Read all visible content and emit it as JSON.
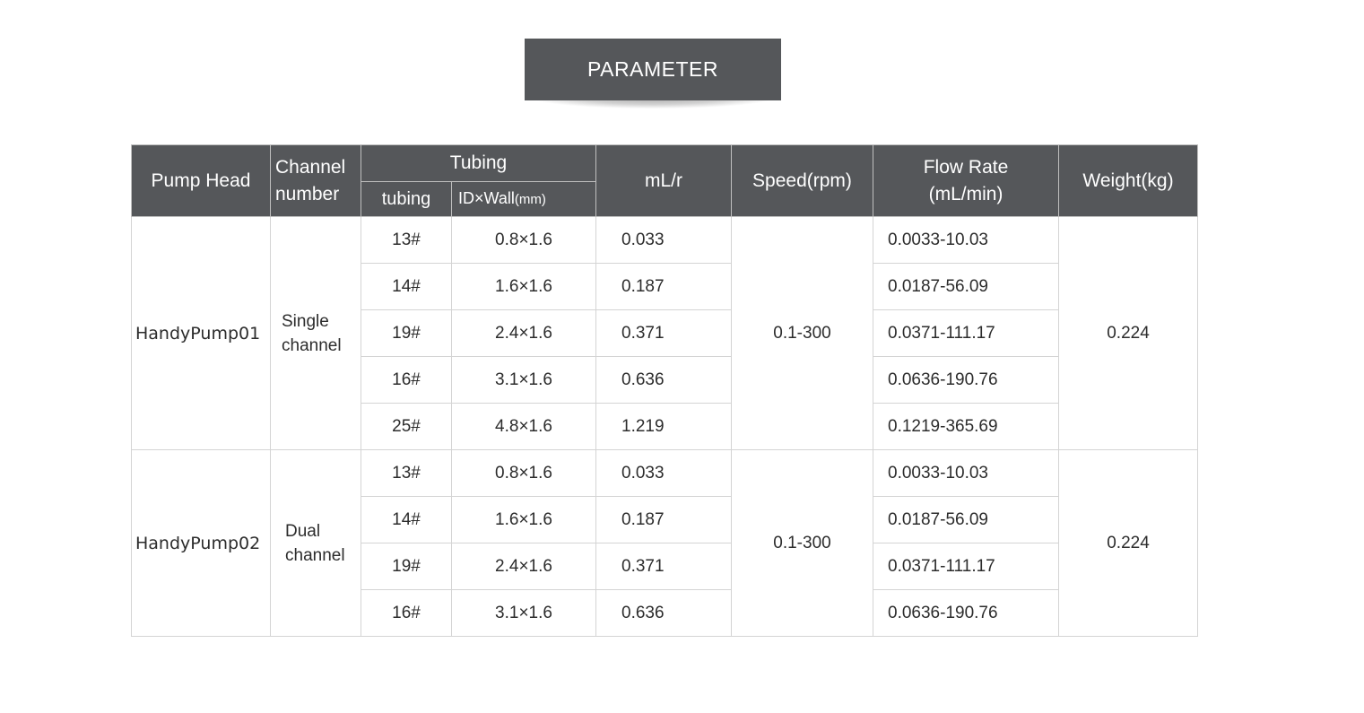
{
  "banner": {
    "title": "PARAMETER"
  },
  "headers": {
    "pump_head": "Pump Head",
    "channel_number_1": "Channel",
    "channel_number_2": "number",
    "tubing": "Tubing",
    "tubing_sub": "tubing",
    "id_wall": "ID×Wall",
    "id_wall_unit": "(mm)",
    "ml_r": "mL/r",
    "speed": "Speed(rpm)",
    "flow_rate_1": "Flow Rate",
    "flow_rate_2": "(mL/min)",
    "weight": "Weight(kg)"
  },
  "groups": [
    {
      "pump": "HandyPump01",
      "channel_1": "Single",
      "channel_2": "channel",
      "speed": "0.1-300",
      "weight": "0.224",
      "rows": [
        {
          "tubing": "13#",
          "id_wall": "0.8×1.6",
          "ml_r": "0.033",
          "flow": "0.0033-10.03"
        },
        {
          "tubing": "14#",
          "id_wall": "1.6×1.6",
          "ml_r": "0.187",
          "flow": "0.0187-56.09"
        },
        {
          "tubing": "19#",
          "id_wall": "2.4×1.6",
          "ml_r": "0.371",
          "flow": "0.0371-111.17"
        },
        {
          "tubing": "16#",
          "id_wall": "3.1×1.6",
          "ml_r": "0.636",
          "flow": "0.0636-190.76"
        },
        {
          "tubing": "25#",
          "id_wall": "4.8×1.6",
          "ml_r": "1.219",
          "flow": "0.1219-365.69"
        }
      ]
    },
    {
      "pump": "HandyPump02",
      "channel_1": "Dual",
      "channel_2": "channel",
      "speed": "0.1-300",
      "weight": "0.224",
      "rows": [
        {
          "tubing": "13#",
          "id_wall": "0.8×1.6",
          "ml_r": "0.033",
          "flow": "0.0033-10.03"
        },
        {
          "tubing": "14#",
          "id_wall": "1.6×1.6",
          "ml_r": "0.187",
          "flow": "0.0187-56.09"
        },
        {
          "tubing": "19#",
          "id_wall": "2.4×1.6",
          "ml_r": "0.371",
          "flow": "0.0371-111.17"
        },
        {
          "tubing": "16#",
          "id_wall": "3.1×1.6",
          "ml_r": "0.636",
          "flow": "0.0636-190.76"
        }
      ]
    }
  ]
}
